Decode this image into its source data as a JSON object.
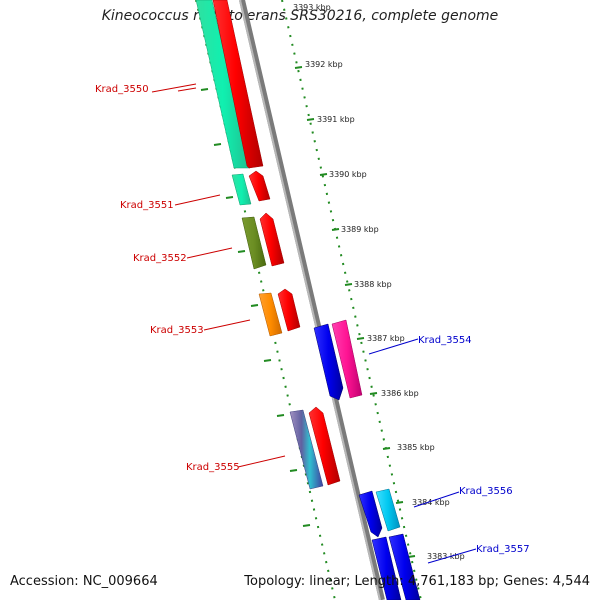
{
  "title": "Kineococcus radiotolerans SRS30216, complete genome",
  "accession": "Accession: NC_009664",
  "summary": "Topology: linear; Length: 4,761,183 bp; Genes: 4,544",
  "colors": {
    "forward_label": "#cc0000",
    "reverse_label": "#0000cc",
    "tick": "#228b22",
    "backbone": "#8c8c8c"
  },
  "kbp_labels": [
    "3393 kbp",
    "3392 kbp",
    "3391 kbp",
    "3390 kbp",
    "3389 kbp",
    "3388 kbp",
    "3387 kbp",
    "3386 kbp",
    "3385 kbp",
    "3384 kbp",
    "3383 kbp"
  ],
  "genes": [
    {
      "name": "Krad_3550",
      "strand": "forward"
    },
    {
      "name": "Krad_3551",
      "strand": "forward"
    },
    {
      "name": "Krad_3552",
      "strand": "forward"
    },
    {
      "name": "Krad_3553",
      "strand": "forward"
    },
    {
      "name": "Krad_3554",
      "strand": "reverse"
    },
    {
      "name": "Krad_3555",
      "strand": "forward"
    },
    {
      "name": "Krad_3556",
      "strand": "reverse"
    },
    {
      "name": "Krad_3557",
      "strand": "reverse"
    }
  ]
}
